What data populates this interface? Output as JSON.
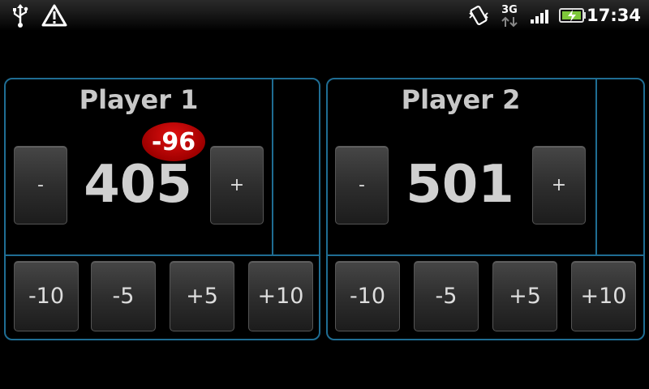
{
  "status_bar": {
    "time": "17:34",
    "network": "3G",
    "icons": [
      "usb-icon",
      "warning-icon",
      "vibrate-icon",
      "network-3g-icon",
      "signal-icon",
      "battery-charging-icon"
    ]
  },
  "players": [
    {
      "name": "Player 1",
      "score": "405",
      "delta_badge": "-96",
      "minus_label": "-",
      "plus_label": "+",
      "steps": [
        "-10",
        "-5",
        "+5",
        "+10"
      ]
    },
    {
      "name": "Player 2",
      "score": "501",
      "minus_label": "-",
      "plus_label": "+",
      "steps": [
        "-10",
        "-5",
        "+5",
        "+10"
      ]
    }
  ],
  "colors": {
    "panel_border": "#1f6d93",
    "badge": "#c00000",
    "background": "#000000"
  }
}
